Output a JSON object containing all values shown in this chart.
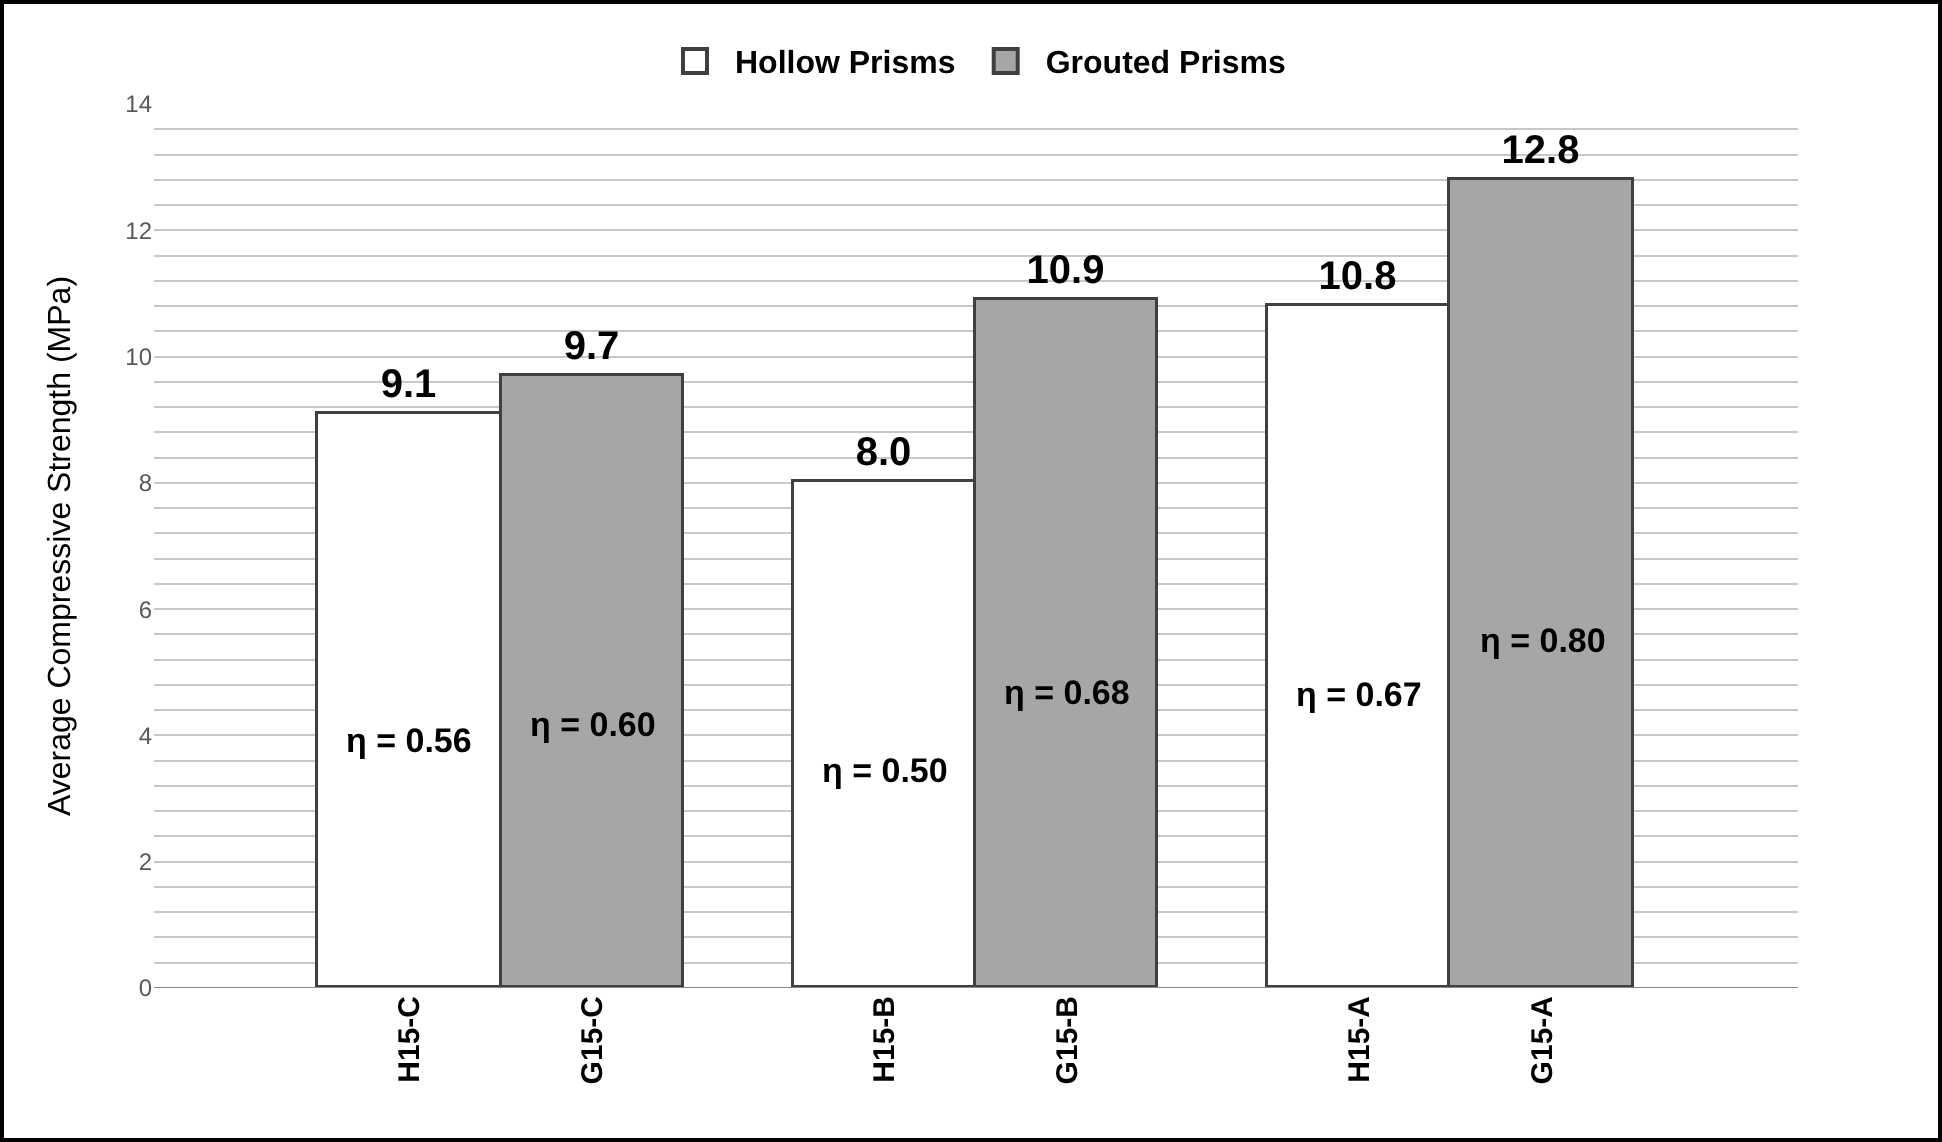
{
  "chart_data": {
    "type": "bar",
    "ylabel": "Average Compressive Strength (MPa)",
    "categories": [
      "H15-C",
      "G15-C",
      "H15-B",
      "G15-B",
      "H15-A",
      "G15-A"
    ],
    "series": [
      {
        "name": "Hollow Prisms",
        "color": "#ffffff",
        "values": [
          9.1,
          null,
          8.0,
          null,
          10.8,
          null
        ],
        "value_labels": [
          "9.1",
          null,
          "8.0",
          null,
          "10.8",
          null
        ]
      },
      {
        "name": "Grouted Prisms",
        "color": "#a6a6a6",
        "values": [
          null,
          9.7,
          null,
          10.9,
          null,
          12.8
        ],
        "value_labels": [
          null,
          "9.7",
          null,
          "10.9",
          null,
          "12.8"
        ]
      }
    ],
    "ylim": [
      0,
      14
    ],
    "yticks": [
      0,
      {
        "value": 0.4,
        "label": null
      },
      {
        "value": 0.8,
        "label": null
      },
      {
        "value": 1.2,
        "label": null
      },
      {
        "value": 1.6,
        "label": null
      },
      2,
      {
        "value": 2.4,
        "label": null
      },
      {
        "value": 2.8,
        "label": null
      },
      {
        "value": 3.2,
        "label": null
      },
      {
        "value": 3.6,
        "label": null
      },
      4,
      {
        "value": 4.4,
        "label": null
      },
      {
        "value": 4.8,
        "label": null
      },
      {
        "value": 5.2,
        "label": null
      },
      {
        "value": 5.6,
        "label": null
      },
      6,
      {
        "value": 6.4,
        "label": null
      },
      {
        "value": 6.8,
        "label": null
      },
      {
        "value": 7.2,
        "label": null
      },
      {
        "value": 7.6,
        "label": null
      },
      8,
      {
        "value": 8.4,
        "label": null
      },
      {
        "value": 8.8,
        "label": null
      },
      {
        "value": 9.2,
        "label": null
      },
      {
        "value": 9.6,
        "label": null
      },
      10,
      {
        "value": 10.4,
        "label": null
      },
      {
        "value": 10.8,
        "label": null
      },
      {
        "value": 11.2,
        "label": null
      },
      {
        "value": 11.6,
        "label": null
      },
      12,
      {
        "value": 12.4,
        "label": null
      },
      {
        "value": 12.8,
        "label": null
      },
      {
        "value": 13.2,
        "label": null
      },
      {
        "value": 13.6,
        "label": null
      },
      14
    ],
    "grid": "y",
    "legend": "top",
    "annotations": [
      "η = 0.56",
      "η = 0.60",
      "η = 0.50",
      "η = 0.68",
      "η = 0.67",
      "η = 0.80"
    ]
  }
}
